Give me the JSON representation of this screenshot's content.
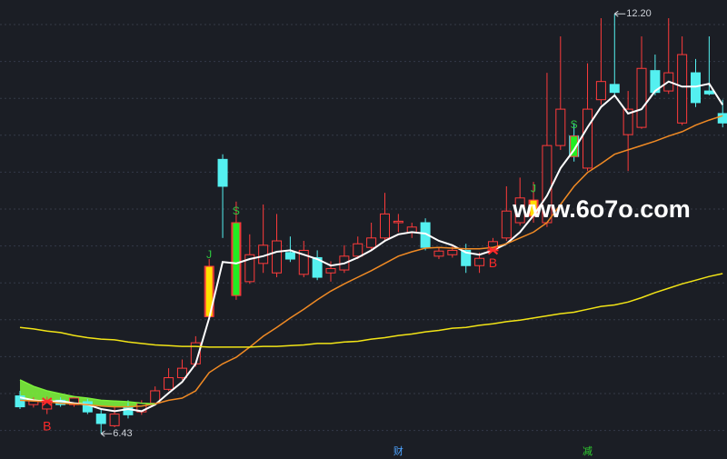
{
  "chart_data": {
    "type": "candlestick",
    "watermark": "www.6o7o.com",
    "categories": [
      null,
      null,
      null,
      null,
      null,
      null,
      null,
      null,
      null,
      null,
      null,
      null,
      null,
      null,
      null,
      null,
      null,
      null,
      null,
      null,
      null,
      null,
      null,
      null,
      null,
      null,
      null,
      null,
      null,
      null,
      null,
      null,
      null,
      null,
      null,
      null,
      null,
      null,
      null,
      null,
      null,
      null,
      null,
      null,
      null,
      null,
      null,
      null,
      null,
      null,
      null,
      null,
      null
    ],
    "open": [
      6.95,
      6.83,
      6.77,
      6.89,
      6.83,
      6.87,
      6.7,
      6.54,
      6.8,
      6.73,
      6.85,
      7.04,
      7.2,
      7.39,
      8.04,
      10.2,
      8.33,
      8.52,
      8.77,
      8.64,
      8.92,
      8.62,
      8.85,
      8.64,
      8.68,
      8.87,
      8.99,
      9.12,
      9.33,
      9.2,
      9.33,
      8.87,
      8.89,
      8.95,
      8.74,
      8.99,
      9.12,
      9.33,
      9.42,
      9.33,
      10.39,
      10.52,
      10.08,
      11.02,
      11.23,
      10.54,
      10.64,
      11.42,
      11.14,
      10.7,
      11.39,
      11.14,
      10.83
    ],
    "high": [
      7.02,
      6.93,
      6.94,
      6.93,
      6.95,
      6.92,
      6.77,
      6.8,
      6.89,
      6.89,
      7.08,
      7.33,
      7.45,
      7.77,
      8.83,
      10.27,
      9.62,
      9.17,
      9.58,
      9.45,
      9.14,
      9.08,
      8.95,
      8.8,
      9.02,
      9.14,
      9.33,
      9.74,
      9.45,
      9.33,
      9.39,
      8.99,
      9.02,
      9.04,
      8.92,
      9.12,
      9.83,
      9.95,
      9.89,
      11.39,
      11.89,
      10.7,
      11.52,
      12.14,
      12.2,
      11.14,
      11.89,
      11.64,
      12.14,
      11.89,
      11.58,
      11.89,
      11.02
    ],
    "low": [
      6.77,
      6.79,
      6.7,
      6.8,
      6.8,
      6.7,
      6.43,
      6.52,
      6.64,
      6.69,
      6.82,
      7.02,
      7.17,
      7.35,
      8.02,
      9.12,
      8.27,
      8.49,
      8.64,
      8.58,
      8.79,
      8.58,
      8.54,
      8.52,
      8.64,
      8.83,
      8.95,
      9.08,
      9.2,
      9.12,
      8.95,
      8.83,
      8.85,
      8.64,
      8.64,
      8.94,
      9.08,
      9.29,
      9.33,
      9.27,
      10.33,
      10.17,
      10.04,
      10.95,
      11.08,
      10.04,
      10.62,
      11.08,
      11.1,
      10.67,
      10.92,
      11.08,
      10.64
    ],
    "close": [
      6.8,
      6.89,
      6.89,
      6.83,
      6.92,
      6.73,
      6.57,
      6.7,
      6.69,
      6.85,
      7.02,
      7.2,
      7.33,
      7.68,
      8.73,
      9.83,
      9.33,
      8.89,
      9.02,
      9.08,
      8.83,
      8.95,
      8.58,
      8.7,
      8.87,
      9.04,
      9.12,
      9.45,
      9.35,
      9.27,
      8.99,
      8.94,
      8.95,
      8.74,
      8.84,
      9.07,
      9.49,
      9.67,
      9.64,
      10.39,
      10.89,
      10.24,
      10.89,
      11.27,
      11.12,
      10.89,
      11.45,
      11.12,
      11.39,
      11.64,
      10.98,
      11.1,
      10.7
    ],
    "up_color": "#ff3b3b",
    "down_color": "#54f0f0",
    "series": [
      {
        "color": "#ffffff",
        "values": [
          6.93,
          6.89,
          6.87,
          6.88,
          6.85,
          6.83,
          6.77,
          6.74,
          6.77,
          6.74,
          6.83,
          6.99,
          7.14,
          7.39,
          8.02,
          8.79,
          8.77,
          8.83,
          8.87,
          8.93,
          8.95,
          8.89,
          8.83,
          8.74,
          8.77,
          8.85,
          8.95,
          9.08,
          9.17,
          9.2,
          9.18,
          9.08,
          9.02,
          8.92,
          8.89,
          8.95,
          9.04,
          9.2,
          9.43,
          9.7,
          10.08,
          10.33,
          10.64,
          10.92,
          11.08,
          10.83,
          10.89,
          11.14,
          11.27,
          11.2,
          11.2,
          11.24,
          10.95
        ]
      },
      {
        "color": "#f08a24",
        "values": [
          6.89,
          6.88,
          6.87,
          6.85,
          6.84,
          6.83,
          6.81,
          6.8,
          6.8,
          6.81,
          6.84,
          6.89,
          6.92,
          7.02,
          7.27,
          7.39,
          7.48,
          7.62,
          7.77,
          7.89,
          8.02,
          8.14,
          8.27,
          8.39,
          8.49,
          8.58,
          8.67,
          8.77,
          8.87,
          8.93,
          8.98,
          8.99,
          8.98,
          8.97,
          8.97,
          8.99,
          9.04,
          9.12,
          9.2,
          9.33,
          9.58,
          9.83,
          10.02,
          10.14,
          10.27,
          10.33,
          10.39,
          10.45,
          10.52,
          10.58,
          10.67,
          10.74,
          10.8
        ]
      },
      {
        "color": "#f2e416",
        "values": [
          7.89,
          7.87,
          7.84,
          7.82,
          7.78,
          7.75,
          7.73,
          7.72,
          7.69,
          7.67,
          7.65,
          7.64,
          7.63,
          7.63,
          7.62,
          7.62,
          7.62,
          7.62,
          7.63,
          7.63,
          7.64,
          7.65,
          7.67,
          7.67,
          7.69,
          7.7,
          7.73,
          7.75,
          7.78,
          7.8,
          7.83,
          7.85,
          7.88,
          7.89,
          7.92,
          7.94,
          7.97,
          7.99,
          8.02,
          8.05,
          8.08,
          8.1,
          8.14,
          8.18,
          8.2,
          8.24,
          8.3,
          8.37,
          8.43,
          8.49,
          8.54,
          8.59,
          8.63
        ]
      },
      {
        "color": "#7cf03c",
        "fill": "#7cf03c",
        "values": [
          7.17,
          7.08,
          7.02,
          6.98,
          6.94,
          6.92,
          6.89,
          6.88,
          6.87,
          6.85,
          6.84,
          null,
          null,
          null,
          null,
          null,
          null,
          null,
          null,
          null,
          null,
          null,
          null,
          null,
          null,
          null,
          null,
          null,
          null,
          null,
          null,
          null,
          null,
          null,
          null,
          null,
          null,
          null,
          null,
          null,
          null,
          null,
          null,
          null,
          null,
          null,
          null,
          null,
          null,
          null,
          null,
          null,
          null
        ]
      }
    ],
    "signals": [
      {
        "text": "J",
        "index": 14,
        "color": "#2ecc40",
        "bar": "#ffe000"
      },
      {
        "text": "S",
        "index": 16,
        "color": "#2ecc40",
        "bar": "#22ee22"
      },
      {
        "text": "J",
        "index": 38,
        "color": "#2ecc40",
        "bar": "#ffe000"
      },
      {
        "text": "S",
        "index": 41,
        "color": "#2ecc40",
        "bar": "#22ee22"
      }
    ],
    "buy_marks": [
      {
        "text": "B",
        "index": 2
      },
      {
        "text": "B",
        "index": 35
      }
    ],
    "buy_color": "#ff2a2a",
    "events": [
      {
        "text": "财",
        "index": 28,
        "color": "#4da3ff"
      },
      {
        "text": "减",
        "index": 42,
        "color": "#2fd12f"
      }
    ],
    "annotations": [
      {
        "value": 12.2,
        "label": "12.20",
        "index": 44
      },
      {
        "value": 6.43,
        "label": "6.43",
        "index": 6
      }
    ],
    "ylim": [
      6.27,
      12.39
    ]
  }
}
